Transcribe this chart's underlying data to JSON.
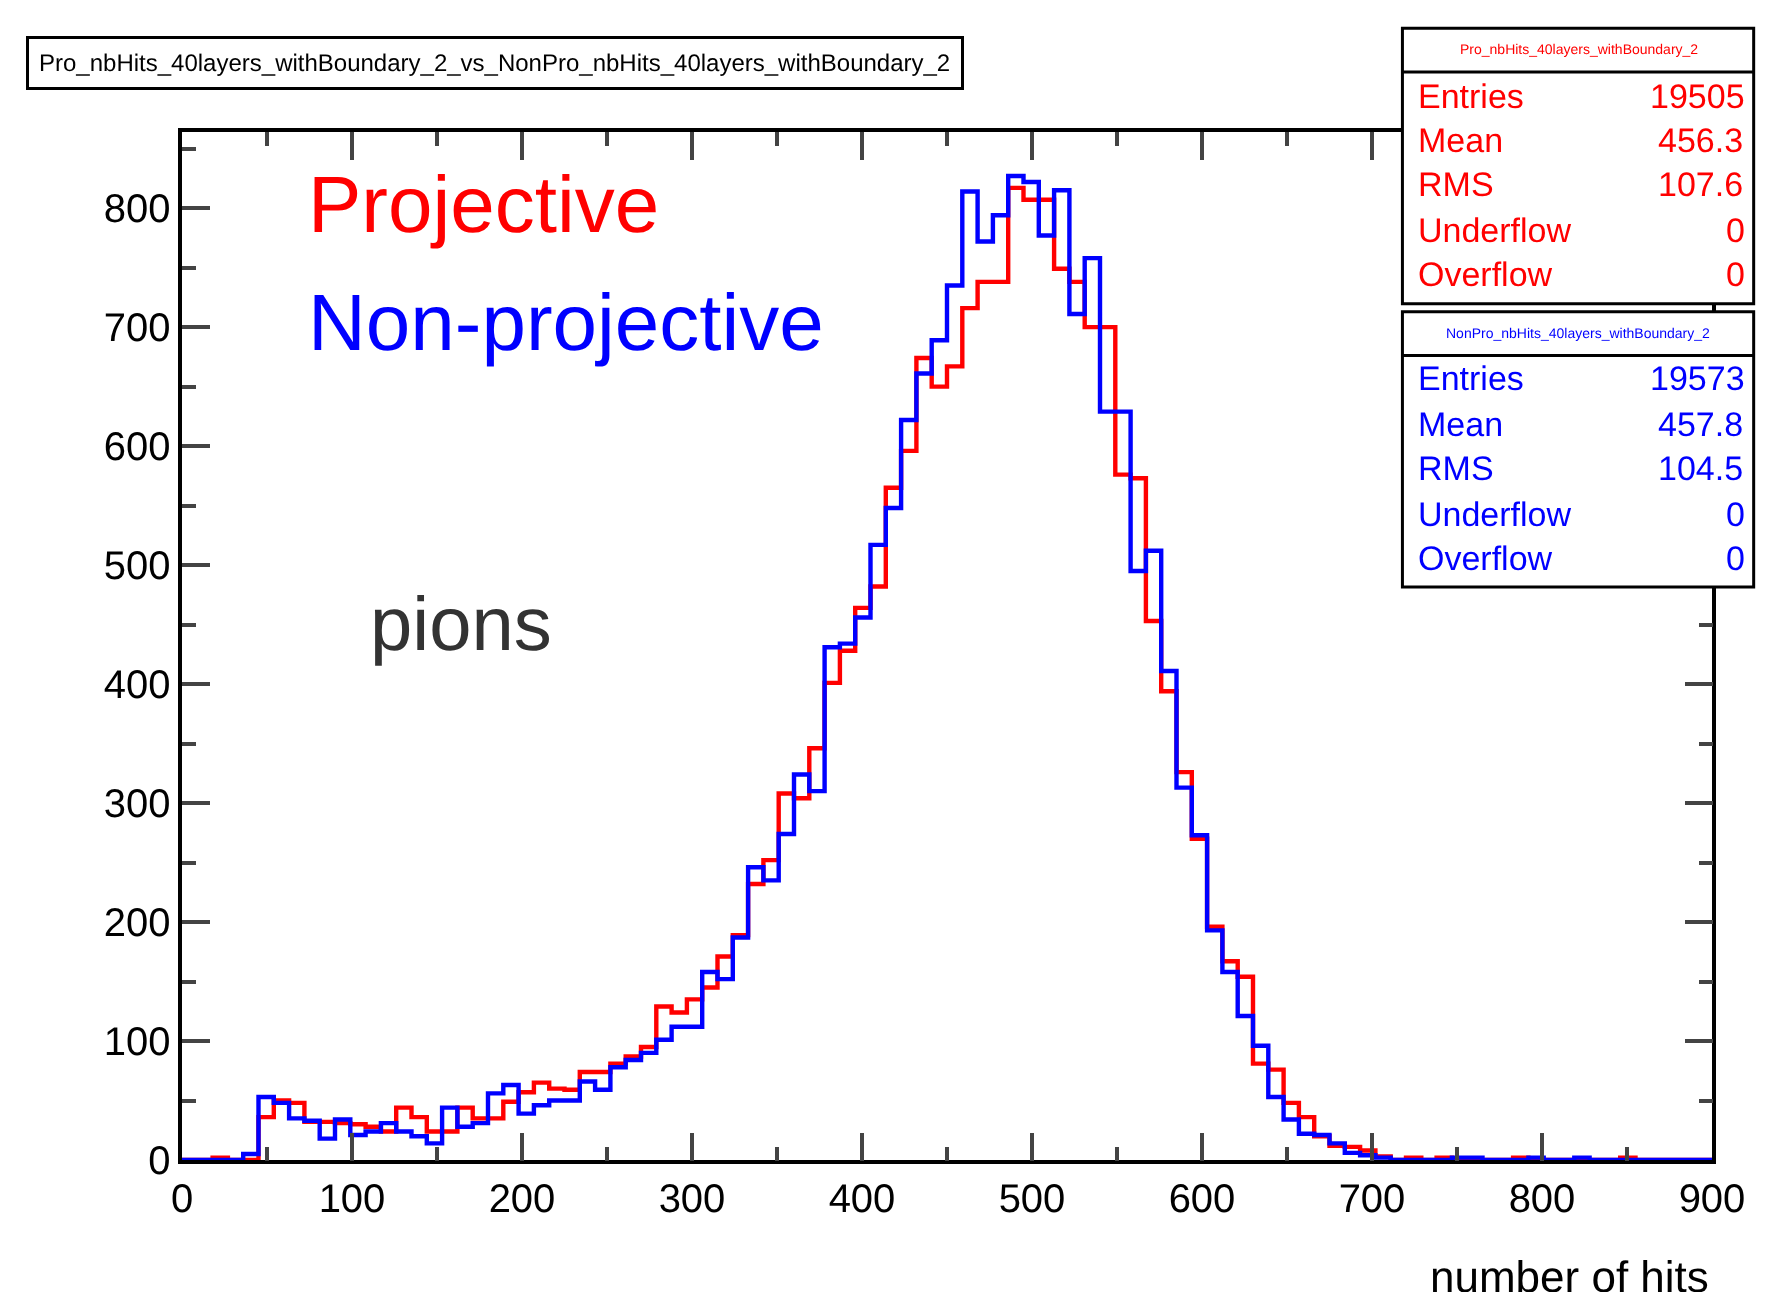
{
  "chart_data": {
    "type": "histogram",
    "title": "Pro_nbHits_40layers_withBoundary_2_vs_NonPro_nbHits_40layers_withBoundary_2",
    "xlabel": "number of hits",
    "bins": [
      0,
      9,
      18,
      27,
      36,
      45,
      54,
      63,
      72,
      81,
      90,
      99,
      108,
      117,
      126,
      135,
      144,
      153,
      162,
      171,
      180,
      189,
      198,
      207,
      216,
      225,
      234,
      243,
      252,
      261,
      270,
      279,
      288,
      297,
      306,
      315,
      324,
      333,
      342,
      351,
      360,
      369,
      378,
      387,
      396,
      405,
      414,
      423,
      432,
      441,
      450,
      459,
      468,
      477,
      486,
      495,
      504,
      513,
      522,
      531,
      540,
      549,
      558,
      567,
      576,
      585,
      594,
      603,
      612,
      621,
      630,
      639,
      648,
      657,
      666,
      675,
      684,
      693,
      702,
      711,
      720,
      729,
      738,
      747,
      756,
      765,
      774,
      783,
      792,
      801,
      810,
      819,
      828,
      837,
      846,
      855,
      864,
      873,
      882,
      891,
      900
    ],
    "series": [
      {
        "name": "Projective",
        "color": "#ff0000",
        "values": [
          0,
          0,
          2,
          0,
          0,
          36,
          50,
          48,
          32,
          32,
          31,
          30,
          28,
          24,
          44,
          36,
          24,
          24,
          44,
          35,
          35,
          49,
          57,
          65,
          60,
          59,
          74,
          74,
          81,
          87,
          95,
          129,
          124,
          135,
          145,
          171,
          189,
          232,
          252,
          308,
          304,
          346,
          401,
          428,
          464,
          482,
          565,
          596,
          674,
          650,
          667,
          716,
          738,
          738,
          817,
          807,
          807,
          749,
          738,
          700,
          700,
          576,
          573,
          453,
          394,
          326,
          270,
          196,
          167,
          154,
          81,
          76,
          48,
          36,
          20,
          12,
          11,
          8,
          3,
          0,
          2,
          0,
          2,
          0,
          0,
          0,
          0,
          2,
          0,
          0,
          0,
          0,
          0,
          0,
          2,
          0,
          0,
          0,
          0,
          0
        ]
      },
      {
        "name": "Non-projective",
        "color": "#0000ff",
        "values": [
          0,
          0,
          0,
          0,
          5,
          53,
          48,
          35,
          33,
          18,
          34,
          21,
          24,
          31,
          24,
          20,
          14,
          44,
          28,
          31,
          56,
          63,
          39,
          46,
          50,
          50,
          66,
          59,
          78,
          84,
          90,
          101,
          112,
          112,
          158,
          152,
          187,
          246,
          235,
          274,
          324,
          310,
          431,
          434,
          456,
          517,
          548,
          622,
          661,
          689,
          735,
          814,
          772,
          794,
          827,
          822,
          777,
          815,
          711,
          758,
          629,
          629,
          495,
          512,
          411,
          313,
          273,
          193,
          158,
          121,
          96,
          53,
          34,
          22,
          21,
          14,
          6,
          4,
          2,
          0,
          0,
          0,
          0,
          2,
          2,
          0,
          0,
          0,
          2,
          0,
          0,
          2,
          0,
          0,
          0,
          0,
          0,
          0,
          0,
          0
        ]
      }
    ],
    "xlim": [
      0,
      900
    ],
    "xticks": [
      0,
      100,
      200,
      300,
      400,
      500,
      600,
      700,
      800,
      900
    ],
    "ylim": [
      0,
      864
    ],
    "yticks": [
      0,
      100,
      200,
      300,
      400,
      500,
      600,
      700,
      800
    ],
    "annotations": [
      "pions",
      "Pro_nbHits_40layers_withBoundary_2",
      "Entries 19505",
      "Mean 456.3",
      "RMS 107.6",
      "Underflow 0",
      "Overflow 0",
      "NonPro_nbHits_40layers_withBoundary_2",
      "Entries 19573",
      "Mean 457.8",
      "RMS 104.5",
      "Underflow 0",
      "Overflow 0"
    ]
  }
}
